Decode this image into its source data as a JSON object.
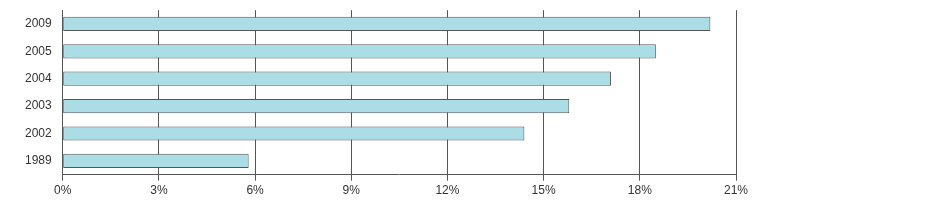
{
  "chart_data": {
    "type": "bar",
    "orientation": "horizontal",
    "categories": [
      "2009",
      "2005",
      "2004",
      "2003",
      "2002",
      "1989"
    ],
    "values": [
      20.2,
      18.5,
      17.1,
      15.8,
      14.4,
      5.8
    ],
    "color": "#abdde6",
    "xlim": [
      0,
      21
    ],
    "xticks": [
      {
        "value": 0,
        "label": "0%"
      },
      {
        "value": 3,
        "label": "3%"
      },
      {
        "value": 6,
        "label": "6%"
      },
      {
        "value": 9,
        "label": "9%"
      },
      {
        "value": 12,
        "label": "12%"
      },
      {
        "value": 15,
        "label": "15%"
      },
      {
        "value": 18,
        "label": "18%"
      },
      {
        "value": 21,
        "label": "21%"
      }
    ],
    "grid": true
  }
}
